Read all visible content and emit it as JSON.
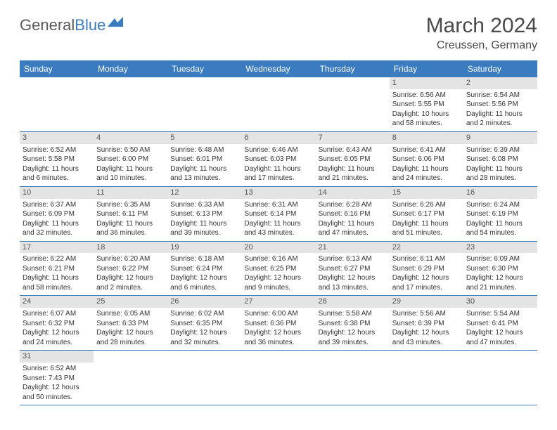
{
  "logo": {
    "part1": "General",
    "part2": "Blue"
  },
  "title": "March 2024",
  "location": "Creussen, Germany",
  "colors": {
    "header_bg": "#3b7bbf",
    "header_text": "#ffffff",
    "daynum_bg": "#e4e4e4",
    "border": "#3b7bbf",
    "text": "#333333"
  },
  "day_labels": [
    "Sunday",
    "Monday",
    "Tuesday",
    "Wednesday",
    "Thursday",
    "Friday",
    "Saturday"
  ],
  "weeks": [
    [
      null,
      null,
      null,
      null,
      null,
      {
        "n": "1",
        "sr": "Sunrise: 6:56 AM",
        "ss": "Sunset: 5:55 PM",
        "dl": "Daylight: 10 hours and 58 minutes."
      },
      {
        "n": "2",
        "sr": "Sunrise: 6:54 AM",
        "ss": "Sunset: 5:56 PM",
        "dl": "Daylight: 11 hours and 2 minutes."
      }
    ],
    [
      {
        "n": "3",
        "sr": "Sunrise: 6:52 AM",
        "ss": "Sunset: 5:58 PM",
        "dl": "Daylight: 11 hours and 6 minutes."
      },
      {
        "n": "4",
        "sr": "Sunrise: 6:50 AM",
        "ss": "Sunset: 6:00 PM",
        "dl": "Daylight: 11 hours and 10 minutes."
      },
      {
        "n": "5",
        "sr": "Sunrise: 6:48 AM",
        "ss": "Sunset: 6:01 PM",
        "dl": "Daylight: 11 hours and 13 minutes."
      },
      {
        "n": "6",
        "sr": "Sunrise: 6:46 AM",
        "ss": "Sunset: 6:03 PM",
        "dl": "Daylight: 11 hours and 17 minutes."
      },
      {
        "n": "7",
        "sr": "Sunrise: 6:43 AM",
        "ss": "Sunset: 6:05 PM",
        "dl": "Daylight: 11 hours and 21 minutes."
      },
      {
        "n": "8",
        "sr": "Sunrise: 6:41 AM",
        "ss": "Sunset: 6:06 PM",
        "dl": "Daylight: 11 hours and 24 minutes."
      },
      {
        "n": "9",
        "sr": "Sunrise: 6:39 AM",
        "ss": "Sunset: 6:08 PM",
        "dl": "Daylight: 11 hours and 28 minutes."
      }
    ],
    [
      {
        "n": "10",
        "sr": "Sunrise: 6:37 AM",
        "ss": "Sunset: 6:09 PM",
        "dl": "Daylight: 11 hours and 32 minutes."
      },
      {
        "n": "11",
        "sr": "Sunrise: 6:35 AM",
        "ss": "Sunset: 6:11 PM",
        "dl": "Daylight: 11 hours and 36 minutes."
      },
      {
        "n": "12",
        "sr": "Sunrise: 6:33 AM",
        "ss": "Sunset: 6:13 PM",
        "dl": "Daylight: 11 hours and 39 minutes."
      },
      {
        "n": "13",
        "sr": "Sunrise: 6:31 AM",
        "ss": "Sunset: 6:14 PM",
        "dl": "Daylight: 11 hours and 43 minutes."
      },
      {
        "n": "14",
        "sr": "Sunrise: 6:28 AM",
        "ss": "Sunset: 6:16 PM",
        "dl": "Daylight: 11 hours and 47 minutes."
      },
      {
        "n": "15",
        "sr": "Sunrise: 6:26 AM",
        "ss": "Sunset: 6:17 PM",
        "dl": "Daylight: 11 hours and 51 minutes."
      },
      {
        "n": "16",
        "sr": "Sunrise: 6:24 AM",
        "ss": "Sunset: 6:19 PM",
        "dl": "Daylight: 11 hours and 54 minutes."
      }
    ],
    [
      {
        "n": "17",
        "sr": "Sunrise: 6:22 AM",
        "ss": "Sunset: 6:21 PM",
        "dl": "Daylight: 11 hours and 58 minutes."
      },
      {
        "n": "18",
        "sr": "Sunrise: 6:20 AM",
        "ss": "Sunset: 6:22 PM",
        "dl": "Daylight: 12 hours and 2 minutes."
      },
      {
        "n": "19",
        "sr": "Sunrise: 6:18 AM",
        "ss": "Sunset: 6:24 PM",
        "dl": "Daylight: 12 hours and 6 minutes."
      },
      {
        "n": "20",
        "sr": "Sunrise: 6:16 AM",
        "ss": "Sunset: 6:25 PM",
        "dl": "Daylight: 12 hours and 9 minutes."
      },
      {
        "n": "21",
        "sr": "Sunrise: 6:13 AM",
        "ss": "Sunset: 6:27 PM",
        "dl": "Daylight: 12 hours and 13 minutes."
      },
      {
        "n": "22",
        "sr": "Sunrise: 6:11 AM",
        "ss": "Sunset: 6:29 PM",
        "dl": "Daylight: 12 hours and 17 minutes."
      },
      {
        "n": "23",
        "sr": "Sunrise: 6:09 AM",
        "ss": "Sunset: 6:30 PM",
        "dl": "Daylight: 12 hours and 21 minutes."
      }
    ],
    [
      {
        "n": "24",
        "sr": "Sunrise: 6:07 AM",
        "ss": "Sunset: 6:32 PM",
        "dl": "Daylight: 12 hours and 24 minutes."
      },
      {
        "n": "25",
        "sr": "Sunrise: 6:05 AM",
        "ss": "Sunset: 6:33 PM",
        "dl": "Daylight: 12 hours and 28 minutes."
      },
      {
        "n": "26",
        "sr": "Sunrise: 6:02 AM",
        "ss": "Sunset: 6:35 PM",
        "dl": "Daylight: 12 hours and 32 minutes."
      },
      {
        "n": "27",
        "sr": "Sunrise: 6:00 AM",
        "ss": "Sunset: 6:36 PM",
        "dl": "Daylight: 12 hours and 36 minutes."
      },
      {
        "n": "28",
        "sr": "Sunrise: 5:58 AM",
        "ss": "Sunset: 6:38 PM",
        "dl": "Daylight: 12 hours and 39 minutes."
      },
      {
        "n": "29",
        "sr": "Sunrise: 5:56 AM",
        "ss": "Sunset: 6:39 PM",
        "dl": "Daylight: 12 hours and 43 minutes."
      },
      {
        "n": "30",
        "sr": "Sunrise: 5:54 AM",
        "ss": "Sunset: 6:41 PM",
        "dl": "Daylight: 12 hours and 47 minutes."
      }
    ],
    [
      {
        "n": "31",
        "sr": "Sunrise: 6:52 AM",
        "ss": "Sunset: 7:43 PM",
        "dl": "Daylight: 12 hours and 50 minutes."
      },
      null,
      null,
      null,
      null,
      null,
      null
    ]
  ]
}
